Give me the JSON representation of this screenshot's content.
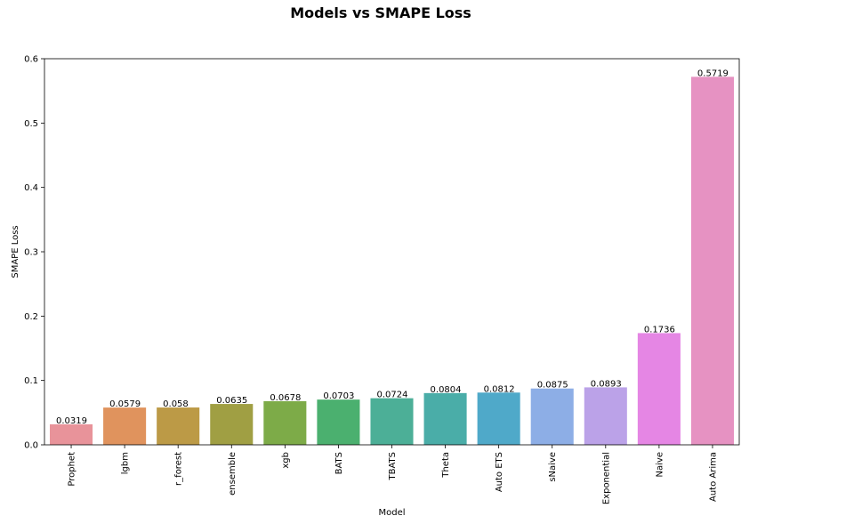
{
  "chart_data": {
    "type": "bar",
    "title": "Models vs SMAPE Loss",
    "xlabel": "Model",
    "ylabel": "SMAPE Loss",
    "ylim": [
      0,
      0.6
    ],
    "yticks": [
      "0.0",
      "0.1",
      "0.2",
      "0.3",
      "0.4",
      "0.5",
      "0.6"
    ],
    "grid": false,
    "categories": [
      "Prophet",
      "lgbm",
      "r_forest",
      "ensemble",
      "xgb",
      "BATS",
      "TBATS",
      "Theta",
      "Auto ETS",
      "sNaive",
      "Exponential",
      "Naive",
      "Auto Arima"
    ],
    "values": [
      0.0319,
      0.0579,
      0.058,
      0.0635,
      0.0678,
      0.0703,
      0.0724,
      0.0804,
      0.0812,
      0.0875,
      0.0893,
      0.1736,
      0.5719
    ],
    "value_labels": [
      "0.0319",
      "0.0579",
      "0.058",
      "0.0635",
      "0.0678",
      "0.0703",
      "0.0724",
      "0.0804",
      "0.0812",
      "0.0875",
      "0.0893",
      "0.1736",
      "0.5719"
    ],
    "colors": [
      "#e8939a",
      "#e0935d",
      "#bc9a46",
      "#a09f43",
      "#7dab48",
      "#4bb06f",
      "#4caf97",
      "#4aada8",
      "#4fa9c9",
      "#8daee6",
      "#bba2e8",
      "#e586e4",
      "#e692c2"
    ]
  }
}
